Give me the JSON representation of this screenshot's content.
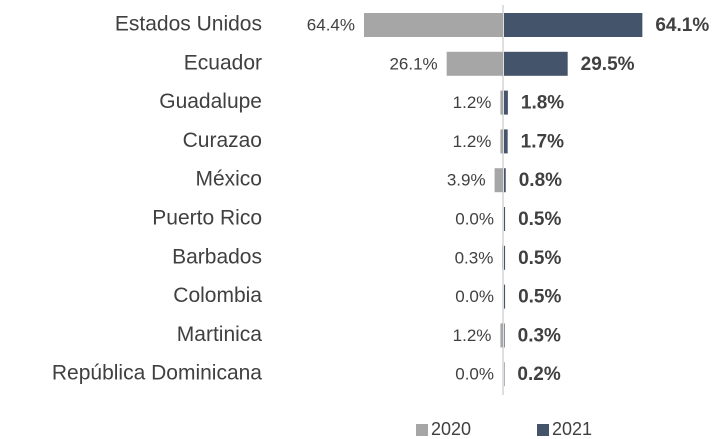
{
  "chart_data": {
    "type": "bar",
    "categories": [
      "Estados Unidos",
      "Ecuador",
      "Guadalupe",
      "Curazao",
      "México",
      "Puerto Rico",
      "Barbados",
      "Colombia",
      "Martinica",
      "República Dominicana"
    ],
    "series": [
      {
        "name": "2020",
        "color": "#a6a6a6",
        "values": [
          64.4,
          26.1,
          1.2,
          1.2,
          3.9,
          0.0,
          0.3,
          0.0,
          1.2,
          0.0
        ],
        "value_labels": [
          "64.4%",
          "26.1%",
          "1.2%",
          "1.2%",
          "3.9%",
          "0.0%",
          "0.3%",
          "0.0%",
          "1.2%",
          "0.0%"
        ]
      },
      {
        "name": "2021",
        "color": "#44546a",
        "values": [
          64.1,
          29.5,
          1.8,
          1.7,
          0.8,
          0.5,
          0.5,
          0.5,
          0.3,
          0.2
        ],
        "value_labels": [
          "64.1%",
          "29.5%",
          "1.8%",
          "1.7%",
          "0.8%",
          "0.5%",
          "0.5%",
          "0.5%",
          "0.3%",
          "0.2%"
        ]
      }
    ],
    "legend": "bottom"
  }
}
